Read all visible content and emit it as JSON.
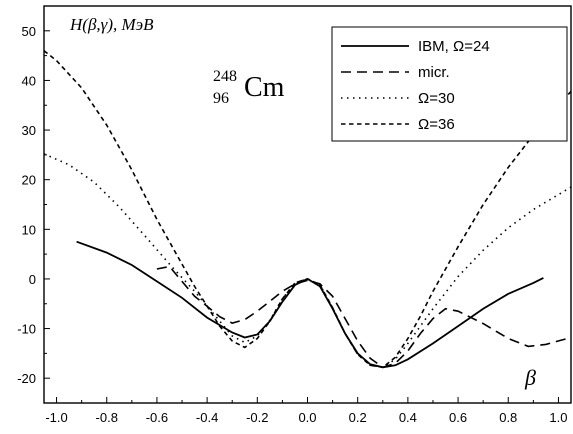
{
  "chart_data": {
    "type": "line",
    "ylabel": "H(β,γ), МэВ",
    "xlabel": "β",
    "annotation": {
      "mass": "248",
      "atomic": "96",
      "symbol": "Cm"
    },
    "xlim": [
      -1.05,
      1.05
    ],
    "ylim": [
      -25,
      55
    ],
    "x_ticks": [
      -1.0,
      -0.8,
      -0.6,
      -0.4,
      -0.2,
      0.0,
      0.2,
      0.4,
      0.6,
      0.8,
      1.0
    ],
    "x_tick_labels": [
      "-1.0",
      "-0.8",
      "-0.6",
      "-0.4",
      "-0.2",
      "0.0",
      "0.2",
      "0.4",
      "0.6",
      "0.8",
      "1.0"
    ],
    "y_ticks": [
      -20,
      -10,
      0,
      10,
      20,
      30,
      40,
      50
    ],
    "y_tick_labels": [
      "-20",
      "-10",
      "0",
      "10",
      "20",
      "30",
      "40",
      "50"
    ],
    "legend_position": "top-right",
    "series": [
      {
        "name": "IBM, Ω=24",
        "style": "solid",
        "points": [
          [
            -0.92,
            7.5
          ],
          [
            -0.8,
            5.3
          ],
          [
            -0.7,
            2.8
          ],
          [
            -0.6,
            -0.5
          ],
          [
            -0.5,
            -3.8
          ],
          [
            -0.4,
            -7.8
          ],
          [
            -0.3,
            -10.8
          ],
          [
            -0.25,
            -11.8
          ],
          [
            -0.2,
            -11.2
          ],
          [
            -0.15,
            -8.5
          ],
          [
            -0.1,
            -4.6
          ],
          [
            -0.05,
            -1.2
          ],
          [
            0.0,
            0.0
          ],
          [
            0.05,
            -1.5
          ],
          [
            0.1,
            -6.0
          ],
          [
            0.15,
            -11.0
          ],
          [
            0.2,
            -15.0
          ],
          [
            0.25,
            -17.2
          ],
          [
            0.3,
            -17.8
          ],
          [
            0.35,
            -17.4
          ],
          [
            0.4,
            -16.2
          ],
          [
            0.5,
            -13.0
          ],
          [
            0.6,
            -9.5
          ],
          [
            0.7,
            -6.0
          ],
          [
            0.8,
            -3.0
          ],
          [
            0.9,
            -0.8
          ],
          [
            0.94,
            0.2
          ]
        ]
      },
      {
        "name": "micr.",
        "style": "dashed",
        "points": [
          [
            -0.6,
            2.0
          ],
          [
            -0.55,
            2.5
          ],
          [
            -0.5,
            -0.5
          ],
          [
            -0.45,
            -3.5
          ],
          [
            -0.4,
            -5.5
          ],
          [
            -0.35,
            -7.6
          ],
          [
            -0.3,
            -8.9
          ],
          [
            -0.25,
            -8.2
          ],
          [
            -0.2,
            -6.5
          ],
          [
            -0.15,
            -4.5
          ],
          [
            -0.1,
            -2.5
          ],
          [
            -0.05,
            -1.0
          ],
          [
            0.0,
            -0.3
          ],
          [
            0.05,
            -1.0
          ],
          [
            0.1,
            -3.5
          ],
          [
            0.15,
            -8.0
          ],
          [
            0.2,
            -12.5
          ],
          [
            0.25,
            -16.0
          ],
          [
            0.3,
            -17.8
          ],
          [
            0.35,
            -17.0
          ],
          [
            0.4,
            -14.5
          ],
          [
            0.45,
            -11.0
          ],
          [
            0.5,
            -8.0
          ],
          [
            0.55,
            -6.0
          ],
          [
            0.6,
            -6.5
          ],
          [
            0.7,
            -9.0
          ],
          [
            0.8,
            -12.0
          ],
          [
            0.88,
            -13.6
          ],
          [
            0.95,
            -13.2
          ],
          [
            1.05,
            -11.8
          ]
        ]
      },
      {
        "name": "Ω=30",
        "style": "dotted",
        "points": [
          [
            -1.05,
            25.2
          ],
          [
            -0.95,
            23.0
          ],
          [
            -0.85,
            19.5
          ],
          [
            -0.75,
            14.5
          ],
          [
            -0.65,
            8.8
          ],
          [
            -0.55,
            3.0
          ],
          [
            -0.45,
            -2.5
          ],
          [
            -0.4,
            -5.5
          ],
          [
            -0.35,
            -8.5
          ],
          [
            -0.3,
            -11.5
          ],
          [
            -0.25,
            -12.8
          ],
          [
            -0.2,
            -11.5
          ],
          [
            -0.15,
            -8.3
          ],
          [
            -0.1,
            -4.0
          ],
          [
            -0.05,
            -0.8
          ],
          [
            0.0,
            0.0
          ],
          [
            0.05,
            -1.2
          ],
          [
            0.1,
            -5.8
          ],
          [
            0.15,
            -11.0
          ],
          [
            0.2,
            -15.2
          ],
          [
            0.25,
            -17.4
          ],
          [
            0.3,
            -17.8
          ],
          [
            0.35,
            -16.2
          ],
          [
            0.4,
            -13.0
          ],
          [
            0.5,
            -6.0
          ],
          [
            0.6,
            0.5
          ],
          [
            0.7,
            5.8
          ],
          [
            0.8,
            10.3
          ],
          [
            0.9,
            14.0
          ],
          [
            1.0,
            17.0
          ],
          [
            1.05,
            18.5
          ]
        ]
      },
      {
        "name": "Ω=36",
        "style": "short-dashed",
        "points": [
          [
            -1.05,
            46.0
          ],
          [
            -1.0,
            44.0
          ],
          [
            -0.9,
            38.5
          ],
          [
            -0.8,
            31.0
          ],
          [
            -0.7,
            22.0
          ],
          [
            -0.6,
            12.0
          ],
          [
            -0.5,
            3.0
          ],
          [
            -0.45,
            -1.5
          ],
          [
            -0.4,
            -5.5
          ],
          [
            -0.35,
            -9.5
          ],
          [
            -0.3,
            -12.5
          ],
          [
            -0.25,
            -13.8
          ],
          [
            -0.2,
            -12.0
          ],
          [
            -0.15,
            -8.5
          ],
          [
            -0.1,
            -4.0
          ],
          [
            -0.05,
            -0.8
          ],
          [
            0.0,
            0.0
          ],
          [
            0.05,
            -1.2
          ],
          [
            0.1,
            -5.8
          ],
          [
            0.15,
            -11.0
          ],
          [
            0.2,
            -15.2
          ],
          [
            0.25,
            -17.4
          ],
          [
            0.3,
            -17.8
          ],
          [
            0.35,
            -15.8
          ],
          [
            0.4,
            -12.0
          ],
          [
            0.45,
            -7.5
          ],
          [
            0.5,
            -2.5
          ],
          [
            0.6,
            6.5
          ],
          [
            0.7,
            15.0
          ],
          [
            0.8,
            22.5
          ],
          [
            0.9,
            29.0
          ],
          [
            1.0,
            35.0
          ],
          [
            1.05,
            37.8
          ]
        ]
      }
    ]
  }
}
